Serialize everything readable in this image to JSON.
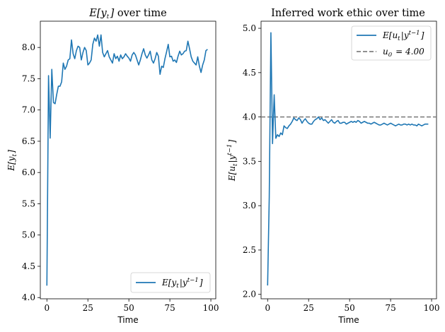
{
  "chart_data": [
    {
      "type": "line",
      "title_math": "E[y_t]",
      "title_suffix": "over time",
      "xlabel": "Time",
      "ylabel": "E[y_t]",
      "xlim": [
        -4,
        103
      ],
      "ylim": [
        3.98,
        8.42
      ],
      "xticks": [
        0,
        25,
        50,
        75,
        100
      ],
      "yticks": [
        4.0,
        4.5,
        5.0,
        5.5,
        6.0,
        6.5,
        7.0,
        7.5,
        8.0
      ],
      "ytick_labels": [
        "4.0",
        "4.5",
        "5.0",
        "5.5",
        "6.0",
        "6.5",
        "7.0",
        "7.5",
        "8.0"
      ],
      "legend_position": "lower-right",
      "series": [
        {
          "name": "E[y_t|y^{t-1}]",
          "color": "#1f77b4",
          "x": [
            0,
            1,
            2,
            3,
            4,
            5,
            6,
            7,
            8,
            9,
            10,
            11,
            12,
            13,
            14,
            15,
            16,
            17,
            18,
            19,
            20,
            21,
            22,
            23,
            24,
            25,
            26,
            27,
            28,
            29,
            30,
            31,
            32,
            33,
            34,
            35,
            36,
            37,
            38,
            39,
            40,
            41,
            42,
            43,
            44,
            45,
            46,
            47,
            48,
            49,
            50,
            51,
            52,
            53,
            54,
            55,
            56,
            57,
            58,
            59,
            60,
            61,
            62,
            63,
            64,
            65,
            66,
            67,
            68,
            69,
            70,
            71,
            72,
            73,
            74,
            75,
            76,
            77,
            78,
            79,
            80,
            81,
            82,
            83,
            84,
            85,
            86,
            87,
            88,
            89,
            90,
            91,
            92,
            93,
            94,
            95,
            96,
            97,
            98
          ],
          "y": [
            4.19,
            7.55,
            6.55,
            7.65,
            7.12,
            7.1,
            7.25,
            7.38,
            7.38,
            7.45,
            7.75,
            7.65,
            7.7,
            7.8,
            7.82,
            8.12,
            7.9,
            7.82,
            7.95,
            8.02,
            8.0,
            7.8,
            7.92,
            8.0,
            7.95,
            7.72,
            7.75,
            7.8,
            8.05,
            8.15,
            8.1,
            8.2,
            8.02,
            8.2,
            7.92,
            7.85,
            7.9,
            7.95,
            7.85,
            7.8,
            7.75,
            7.9,
            7.82,
            7.86,
            7.78,
            7.88,
            7.82,
            7.85,
            7.9,
            7.86,
            7.83,
            7.78,
            7.88,
            7.92,
            7.88,
            7.8,
            7.72,
            7.8,
            7.9,
            7.98,
            7.88,
            7.83,
            7.88,
            7.94,
            7.8,
            7.75,
            7.82,
            7.92,
            7.86,
            7.57,
            7.7,
            7.68,
            7.82,
            7.93,
            8.05,
            7.85,
            7.86,
            7.78,
            7.8,
            7.76,
            7.86,
            7.94,
            7.88,
            7.9,
            7.94,
            7.95,
            8.1,
            7.98,
            7.85,
            7.78,
            7.75,
            7.72,
            7.85,
            7.7,
            7.6,
            7.72,
            7.8,
            7.95,
            7.97
          ]
        }
      ]
    },
    {
      "type": "line",
      "title": "Inferred work ethic over time",
      "xlabel": "Time",
      "ylabel": "E[u_t|y^{t-1}]",
      "xlim": [
        -4,
        103
      ],
      "ylim": [
        1.95,
        5.08
      ],
      "xticks": [
        0,
        25,
        50,
        75,
        100
      ],
      "yticks": [
        2.0,
        2.5,
        3.0,
        3.5,
        4.0,
        4.5,
        5.0
      ],
      "ytick_labels": [
        "2.0",
        "2.5",
        "3.0",
        "3.5",
        "4.0",
        "4.5",
        "5.0"
      ],
      "legend_position": "upper-right",
      "series": [
        {
          "name": "E[u_t|y^{t-1}]",
          "color": "#1f77b4",
          "x": [
            0,
            1,
            2,
            3,
            4,
            5,
            6,
            7,
            8,
            9,
            10,
            11,
            12,
            13,
            14,
            15,
            16,
            17,
            18,
            19,
            20,
            21,
            22,
            23,
            24,
            25,
            26,
            27,
            28,
            29,
            30,
            31,
            32,
            33,
            34,
            35,
            36,
            37,
            38,
            39,
            40,
            41,
            42,
            43,
            44,
            45,
            46,
            47,
            48,
            49,
            50,
            51,
            52,
            53,
            54,
            55,
            56,
            57,
            58,
            59,
            60,
            61,
            62,
            63,
            64,
            65,
            66,
            67,
            68,
            69,
            70,
            71,
            72,
            73,
            74,
            75,
            76,
            77,
            78,
            79,
            80,
            81,
            82,
            83,
            84,
            85,
            86,
            87,
            88,
            89,
            90,
            91,
            92,
            93,
            94,
            95,
            96,
            97,
            98
          ],
          "y": [
            2.1,
            3.1,
            4.95,
            3.7,
            4.25,
            3.76,
            3.8,
            3.78,
            3.82,
            3.8,
            3.9,
            3.88,
            3.87,
            3.9,
            3.92,
            3.95,
            3.99,
            3.97,
            3.96,
            3.99,
            3.97,
            3.93,
            3.96,
            3.98,
            3.95,
            3.93,
            3.92,
            3.92,
            3.95,
            3.97,
            3.98,
            4.0,
            3.97,
            3.99,
            3.96,
            3.97,
            3.95,
            3.93,
            3.95,
            3.97,
            3.94,
            3.93,
            3.95,
            3.96,
            3.93,
            3.93,
            3.94,
            3.94,
            3.92,
            3.93,
            3.94,
            3.95,
            3.94,
            3.95,
            3.94,
            3.96,
            3.95,
            3.93,
            3.94,
            3.95,
            3.94,
            3.93,
            3.93,
            3.92,
            3.93,
            3.94,
            3.93,
            3.92,
            3.91,
            3.91,
            3.92,
            3.93,
            3.92,
            3.91,
            3.92,
            3.93,
            3.92,
            3.91,
            3.9,
            3.91,
            3.92,
            3.91,
            3.91,
            3.92,
            3.92,
            3.91,
            3.92,
            3.91,
            3.92,
            3.91,
            3.91,
            3.9,
            3.92,
            3.91,
            3.9,
            3.91,
            3.92,
            3.92,
            3.92
          ]
        },
        {
          "name": "u_0 = 4.00",
          "color": "#808080",
          "style": "dashed",
          "constant_y": 4.0
        }
      ]
    }
  ]
}
